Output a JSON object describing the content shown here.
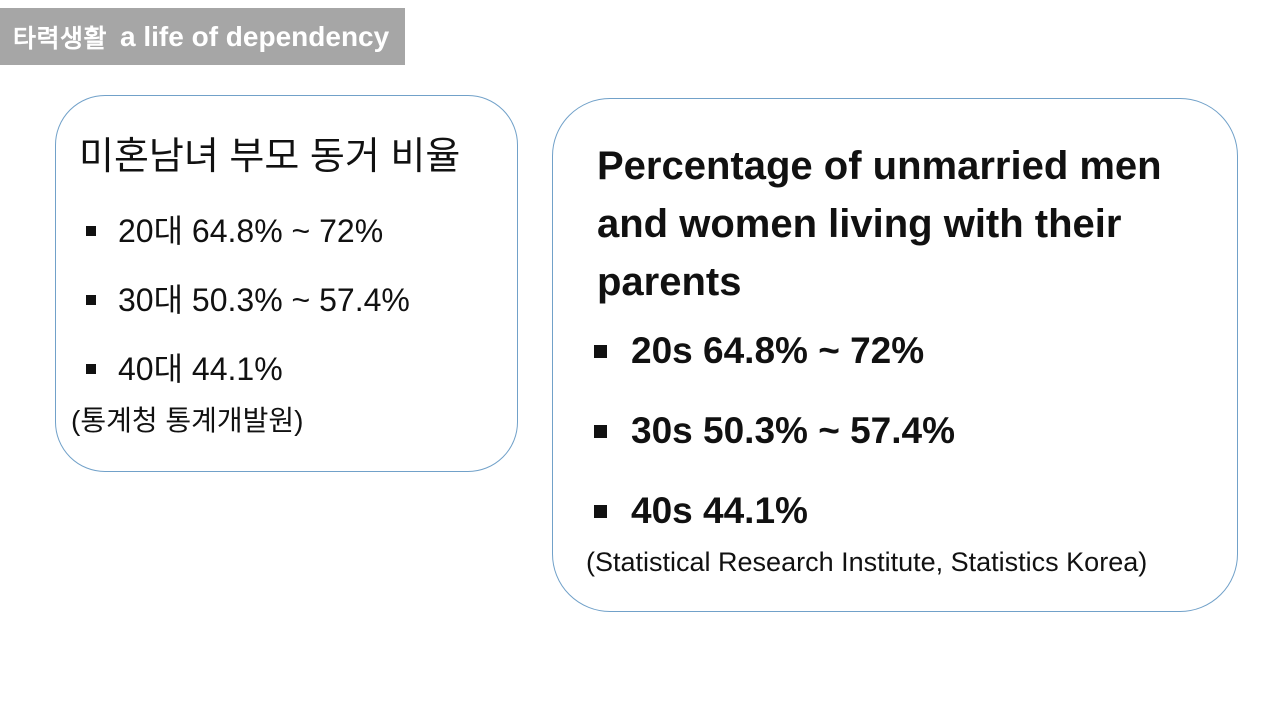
{
  "header": {
    "korean_label": "타력생활",
    "english_label": "a life of dependency"
  },
  "korean_box": {
    "title": "미혼남녀 부모 동거 비율",
    "bullets": [
      "20대 64.8% ~ 72%",
      "30대 50.3% ~ 57.4%",
      "40대 44.1%"
    ],
    "source": "(통계청 통계개발원)"
  },
  "english_box": {
    "title": "Percentage of unmarried men and women living with their parents",
    "bullets": [
      "20s 64.8% ~ 72%",
      "30s 50.3% ~ 57.4%",
      "40s 44.1%"
    ],
    "source": "(Statistical Research Institute, Statistics Korea)"
  },
  "colors": {
    "badge_background": "#a6a6a6",
    "badge_text": "#ffffff",
    "box_border": "#71a1c9",
    "body_text": "#111111"
  }
}
